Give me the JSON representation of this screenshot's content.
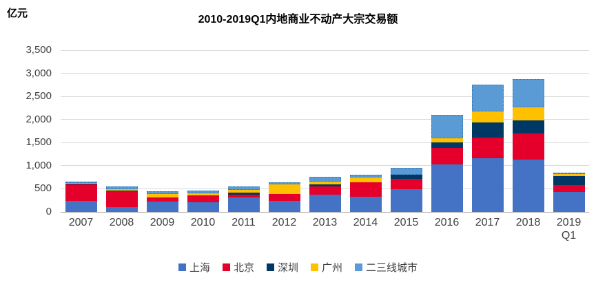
{
  "header": {
    "unit_label": "亿元",
    "title": "2010-2019Q1内地商业不动产大宗交易额"
  },
  "chart_data": {
    "type": "bar",
    "stacked": true,
    "title": "2010-2019Q1内地商业不动产大宗交易额",
    "ylabel": "亿元",
    "xlabel": "",
    "categories": [
      "2007",
      "2008",
      "2009",
      "2010",
      "2011",
      "2012",
      "2013",
      "2014",
      "2015",
      "2016",
      "2017",
      "2018",
      "2019\nQ1"
    ],
    "series": [
      {
        "name": "上海",
        "color": "#4472c4",
        "values": [
          235,
          110,
          220,
          205,
          315,
          235,
          370,
          335,
          490,
          1025,
          1165,
          1125,
          430
        ]
      },
      {
        "name": "北京",
        "color": "#e4002b",
        "values": [
          360,
          335,
          100,
          150,
          60,
          160,
          175,
          300,
          220,
          365,
          445,
          575,
          150
        ]
      },
      {
        "name": "深圳",
        "color": "#003865",
        "values": [
          10,
          20,
          0,
          0,
          40,
          0,
          50,
          0,
          90,
          110,
          325,
          285,
          200
        ]
      },
      {
        "name": "广州",
        "color": "#ffc000",
        "values": [
          20,
          20,
          65,
          55,
          55,
          200,
          60,
          110,
          0,
          90,
          235,
          275,
          35
        ]
      },
      {
        "name": "二三线城市",
        "color": "#5b9bd5",
        "dotted_border": true,
        "values": [
          25,
          70,
          65,
          45,
          75,
          50,
          100,
          65,
          155,
          510,
          580,
          620,
          15
        ]
      }
    ],
    "totals": [
      650,
      555,
      450,
      455,
      545,
      645,
      755,
      810,
      955,
      2100,
      2750,
      2880,
      830
    ],
    "ylim": [
      0,
      3500
    ],
    "ytick_step": 500,
    "ytick_labels": [
      "0",
      "500",
      "1,000",
      "1,500",
      "2,000",
      "2,500",
      "3,000",
      "3,500"
    ],
    "grid": true,
    "legend_position": "bottom"
  }
}
